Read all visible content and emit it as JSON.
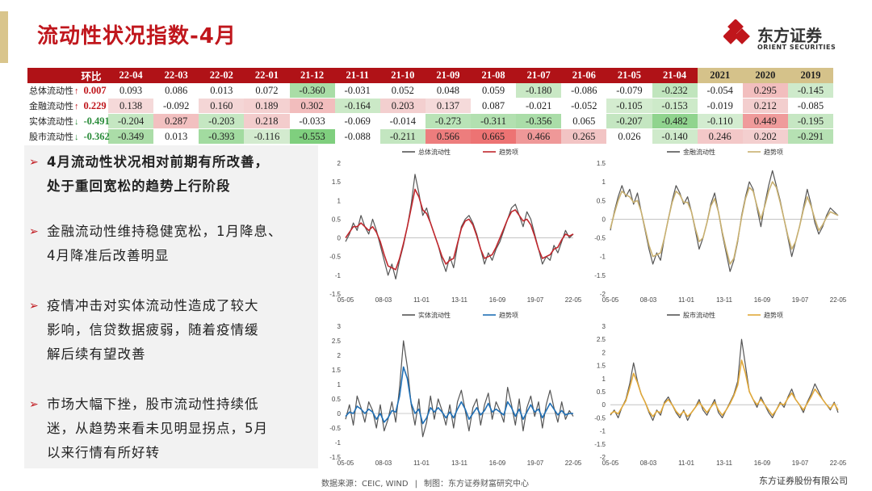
{
  "page": {
    "title": "流动性状况指数-4月",
    "logo": {
      "cn": "东方证券",
      "en": "ORIENT SECURITIES"
    },
    "footer": {
      "source": "数据来源：CEIC, WIND",
      "made": "制图：东方证券财富研究中心"
    },
    "copyright": "东方证券股份有限公司"
  },
  "table": {
    "change_header": "环比",
    "months": [
      "22-04",
      "22-03",
      "22-02",
      "22-01",
      "21-12",
      "21-11",
      "21-10",
      "21-09",
      "21-08",
      "21-07",
      "21-06",
      "21-05",
      "21-04"
    ],
    "years": [
      "2021",
      "2020",
      "2019"
    ],
    "rows": [
      {
        "label": "总体流动性",
        "change": "0.007",
        "dir": "up",
        "months": [
          "0.093",
          "0.086",
          "0.013",
          "0.072",
          "-0.360",
          "-0.031",
          "0.052",
          "0.048",
          "0.059",
          "-0.180",
          "-0.086",
          "-0.079",
          "-0.232"
        ],
        "years": [
          "-0.054",
          "0.295",
          "-0.145"
        ]
      },
      {
        "label": "金融流动性",
        "change": "0.229",
        "dir": "up",
        "months": [
          "0.138",
          "-0.092",
          "0.160",
          "0.189",
          "0.302",
          "-0.164",
          "0.203",
          "0.137",
          "0.087",
          "-0.021",
          "-0.052",
          "-0.105",
          "-0.153"
        ],
        "years": [
          "-0.019",
          "0.212",
          "-0.085"
        ]
      },
      {
        "label": "实体流动性",
        "change": "-0.491",
        "dir": "down",
        "months": [
          "-0.204",
          "0.287",
          "-0.203",
          "0.218",
          "-0.033",
          "-0.069",
          "-0.014",
          "-0.273",
          "-0.311",
          "-0.356",
          "0.065",
          "-0.207",
          "-0.482"
        ],
        "years": [
          "-0.110",
          "0.449",
          "-0.195"
        ]
      },
      {
        "label": "股市流动性",
        "change": "-0.362",
        "dir": "down",
        "months": [
          "-0.349",
          "0.013",
          "-0.393",
          "-0.116",
          "-0.553",
          "-0.088",
          "-0.211",
          "0.566",
          "0.665",
          "0.466",
          "0.265",
          "0.026",
          "-0.140"
        ],
        "years": [
          "0.246",
          "0.202",
          "-0.291"
        ]
      }
    ]
  },
  "bullets": [
    {
      "marker": "➢",
      "text": "4月流动性状况相对前期有所改善，\n处于重回宽松的趋势上行阶段"
    },
    {
      "marker": "➢",
      "text": "金融流动性维持稳健宽松，1月降息、\n4月降准后改善明显"
    },
    {
      "marker": "➢",
      "text": "疫情冲击对实体流动性造成了较大\n影响，信贷数据疲弱，随着疫情缓\n解后续有望改善"
    },
    {
      "marker": "➢",
      "text": "市场大幅下挫，股市流动性持续低\n迷，从趋势来看未见明显拐点，5月\n以来行情有所好转"
    }
  ],
  "chart_data": [
    {
      "type": "line",
      "ylim": [
        -1.5,
        2
      ],
      "yticks": [
        "-1.5",
        "-1",
        "-0.5",
        "0",
        "0.5",
        "1",
        "1.5",
        "2"
      ],
      "xticks": [
        "05-05",
        "08-03",
        "11-01",
        "13-11",
        "16-09",
        "19-07",
        "22-05"
      ],
      "colors": {
        "raw": "#555555",
        "trend": "#c0272d"
      },
      "series": [
        {
          "name": "总体流动性",
          "kind": "raw",
          "values": [
            -0.1,
            0.1,
            0.4,
            0.2,
            0.6,
            0.3,
            0.1,
            0.5,
            0.2,
            -0.2,
            -0.6,
            -1.0,
            -0.7,
            -1.1,
            -0.6,
            -0.2,
            0.3,
            0.9,
            1.7,
            1.2,
            0.6,
            0.8,
            0.4,
            0.1,
            -0.2,
            -0.6,
            -0.9,
            -0.5,
            -0.8,
            -0.2,
            0.3,
            0.5,
            0.6,
            0.4,
            0.1,
            -0.3,
            -0.7,
            -0.4,
            -0.6,
            -0.3,
            -0.1,
            0.2,
            0.5,
            0.8,
            0.9,
            0.6,
            0.3,
            0.7,
            0.5,
            0.1,
            -0.3,
            -0.7,
            -0.5,
            -0.6,
            -0.2,
            -0.4,
            -0.1,
            0.2,
            0.0,
            0.1
          ]
        },
        {
          "name": "趋势项",
          "kind": "trend",
          "values": [
            0.0,
            0.15,
            0.3,
            0.3,
            0.4,
            0.3,
            0.2,
            0.3,
            0.15,
            -0.1,
            -0.45,
            -0.75,
            -0.8,
            -0.85,
            -0.55,
            -0.15,
            0.3,
            0.8,
            1.3,
            1.1,
            0.75,
            0.65,
            0.4,
            0.1,
            -0.2,
            -0.5,
            -0.7,
            -0.6,
            -0.55,
            -0.15,
            0.25,
            0.45,
            0.5,
            0.35,
            0.05,
            -0.3,
            -0.55,
            -0.5,
            -0.45,
            -0.25,
            0.0,
            0.25,
            0.5,
            0.7,
            0.75,
            0.6,
            0.45,
            0.5,
            0.35,
            0.05,
            -0.3,
            -0.55,
            -0.5,
            -0.45,
            -0.3,
            -0.25,
            -0.05,
            0.1,
            0.05,
            0.1
          ]
        }
      ]
    },
    {
      "type": "line",
      "ylim": [
        -2,
        1.5
      ],
      "yticks": [
        "-2",
        "-1.5",
        "-1",
        "-0.5",
        "0",
        "0.5",
        "1",
        "1.5"
      ],
      "xticks": [
        "05-05",
        "08-03",
        "11-01",
        "13-11",
        "16-09",
        "19-07",
        "22-05"
      ],
      "colors": {
        "raw": "#555555",
        "trend": "#c8b070"
      },
      "series": [
        {
          "name": "金融流动性",
          "kind": "raw",
          "values": [
            -0.3,
            0.2,
            0.6,
            0.9,
            0.6,
            0.8,
            0.4,
            0.7,
            0.2,
            -0.3,
            -0.8,
            -1.2,
            -0.9,
            -1.1,
            -0.5,
            0.0,
            0.5,
            0.9,
            0.7,
            0.4,
            0.6,
            0.2,
            -0.3,
            -0.8,
            -0.5,
            -0.1,
            0.4,
            0.7,
            0.2,
            -0.4,
            -0.9,
            -1.4,
            -1.1,
            -0.6,
            0.1,
            0.6,
            1.0,
            0.8,
            0.3,
            -0.2,
            0.4,
            0.9,
            1.3,
            0.9,
            0.5,
            0.0,
            -0.5,
            -1.0,
            -0.6,
            -0.2,
            0.3,
            0.8,
            0.4,
            -0.1,
            -0.4,
            -0.2,
            0.1,
            0.3,
            0.2,
            0.1
          ]
        },
        {
          "name": "趋势项",
          "kind": "trend",
          "values": [
            -0.25,
            0.15,
            0.5,
            0.75,
            0.65,
            0.6,
            0.45,
            0.5,
            0.2,
            -0.25,
            -0.7,
            -1.0,
            -0.95,
            -0.9,
            -0.5,
            0.0,
            0.45,
            0.75,
            0.65,
            0.45,
            0.45,
            0.2,
            -0.25,
            -0.6,
            -0.5,
            -0.1,
            0.35,
            0.55,
            0.2,
            -0.35,
            -0.8,
            -1.2,
            -1.05,
            -0.55,
            0.05,
            0.55,
            0.85,
            0.75,
            0.35,
            0.0,
            0.35,
            0.75,
            1.0,
            0.85,
            0.45,
            0.0,
            -0.45,
            -0.8,
            -0.6,
            -0.2,
            0.25,
            0.6,
            0.35,
            0.0,
            -0.3,
            -0.15,
            0.05,
            0.2,
            0.15,
            0.1
          ]
        }
      ]
    },
    {
      "type": "line",
      "ylim": [
        -1.5,
        3
      ],
      "yticks": [
        "-1.5",
        "-1",
        "-0.5",
        "0",
        "0.5",
        "1",
        "1.5",
        "2",
        "2.5",
        "3"
      ],
      "xticks": [
        "05-05",
        "08-03",
        "11-01",
        "13-11",
        "16-09",
        "19-07",
        "22-05"
      ],
      "colors": {
        "raw": "#555555",
        "trend": "#1f6fb5"
      },
      "series": [
        {
          "name": "实体流动性",
          "kind": "raw",
          "values": [
            -0.2,
            0.3,
            -0.4,
            0.6,
            0.2,
            -0.3,
            0.4,
            0.1,
            -0.5,
            0.3,
            -0.6,
            -0.2,
            0.4,
            -0.3,
            0.9,
            2.5,
            1.6,
            0.3,
            -0.4,
            0.5,
            -0.8,
            -0.3,
            0.6,
            -0.2,
            0.5,
            0.1,
            -0.4,
            0.3,
            -0.5,
            0.4,
            0.8,
            0.1,
            -0.6,
            0.2,
            0.5,
            -0.4,
            0.3,
            0.7,
            -0.2,
            0.4,
            0.1,
            -0.3,
            0.9,
            0.3,
            -0.4,
            0.5,
            -0.6,
            0.2,
            0.6,
            -0.1,
            0.4,
            -0.5,
            0.3,
            0.8,
            0.2,
            -0.3,
            0.4,
            -0.2,
            0.1,
            -0.1
          ]
        },
        {
          "name": "趋势项",
          "kind": "trend",
          "values": [
            -0.1,
            0.05,
            0.0,
            0.25,
            0.15,
            0.0,
            0.15,
            0.05,
            -0.2,
            0.0,
            -0.3,
            -0.15,
            0.1,
            0.05,
            0.6,
            1.6,
            1.2,
            0.35,
            0.0,
            0.15,
            -0.35,
            -0.15,
            0.2,
            0.05,
            0.2,
            0.05,
            -0.15,
            0.05,
            -0.15,
            0.15,
            0.4,
            0.15,
            -0.2,
            0.0,
            0.2,
            -0.05,
            0.1,
            0.35,
            0.05,
            0.15,
            0.05,
            -0.05,
            0.4,
            0.2,
            -0.1,
            0.15,
            -0.2,
            0.05,
            0.3,
            0.05,
            0.15,
            -0.15,
            0.1,
            0.35,
            0.15,
            -0.05,
            0.1,
            -0.05,
            0.0,
            0.0
          ]
        }
      ]
    },
    {
      "type": "line",
      "ylim": [
        -2,
        3
      ],
      "yticks": [
        "-2",
        "-1.5",
        "-1",
        "-0.5",
        "0",
        "0.5",
        "1",
        "1.5",
        "2",
        "2.5",
        "3"
      ],
      "xticks": [
        "05-05",
        "08-03",
        "11-01",
        "13-11",
        "16-09",
        "19-07",
        "22-05"
      ],
      "colors": {
        "raw": "#555555",
        "trend": "#e0a83a"
      },
      "series": [
        {
          "name": "股市流动性",
          "kind": "raw",
          "values": [
            -0.4,
            -0.2,
            -0.5,
            -0.1,
            0.2,
            0.8,
            1.6,
            0.9,
            0.4,
            0.1,
            -0.3,
            -0.6,
            -0.2,
            -0.4,
            0.1,
            0.3,
            0.0,
            -0.3,
            -0.5,
            -0.2,
            -0.6,
            -0.3,
            -0.1,
            0.2,
            -0.2,
            -0.4,
            -0.1,
            0.2,
            -0.3,
            -0.5,
            -0.2,
            0.1,
            0.4,
            0.9,
            2.5,
            1.5,
            0.5,
            0.2,
            -0.1,
            0.3,
            0.0,
            -0.3,
            -0.5,
            -0.2,
            0.1,
            -0.1,
            0.3,
            0.6,
            0.2,
            0.0,
            -0.3,
            0.1,
            0.4,
            0.8,
            0.5,
            0.2,
            0.0,
            -0.2,
            0.1,
            -0.3
          ]
        },
        {
          "name": "趋势项",
          "kind": "trend",
          "values": [
            -0.35,
            -0.25,
            -0.35,
            -0.1,
            0.15,
            0.65,
            1.2,
            0.85,
            0.4,
            0.1,
            -0.25,
            -0.45,
            -0.25,
            -0.3,
            0.05,
            0.2,
            0.0,
            -0.25,
            -0.4,
            -0.25,
            -0.45,
            -0.3,
            -0.1,
            0.1,
            -0.1,
            -0.3,
            -0.1,
            0.1,
            -0.2,
            -0.4,
            -0.2,
            0.05,
            0.35,
            0.75,
            1.7,
            1.2,
            0.5,
            0.2,
            0.0,
            0.2,
            0.0,
            -0.2,
            -0.4,
            -0.2,
            0.05,
            0.0,
            0.25,
            0.45,
            0.2,
            0.0,
            -0.2,
            0.05,
            0.3,
            0.6,
            0.4,
            0.2,
            0.0,
            -0.15,
            0.05,
            -0.2
          ]
        }
      ]
    }
  ]
}
